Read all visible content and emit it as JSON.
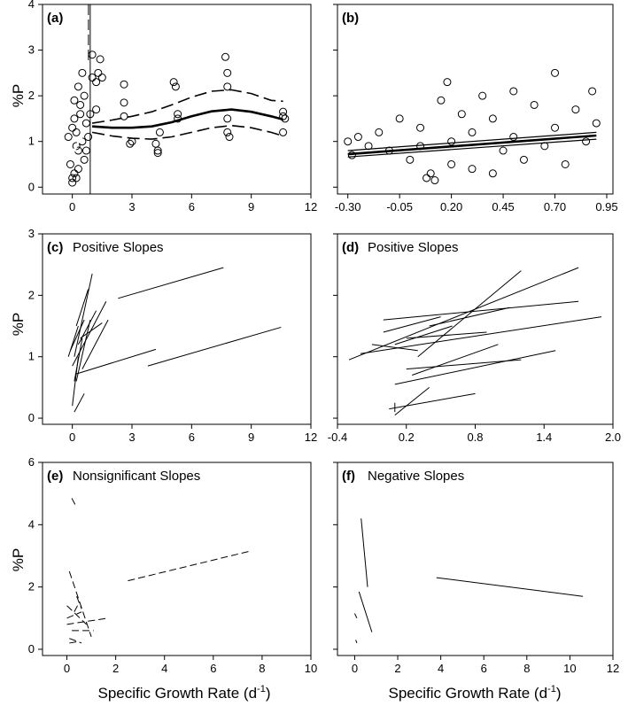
{
  "figure": {
    "x_title": "Specific Growth Rate (d",
    "x_title_sup": "-1",
    "x_title_close": ")",
    "y_title": "%P"
  },
  "chart_data": [
    {
      "panel": "a",
      "label": "(a)",
      "title": "",
      "type": "scatter",
      "xlim": [
        -1.5,
        12
      ],
      "ylim": [
        -0.15,
        4
      ],
      "xticks": [
        "0",
        "3",
        "6",
        "9",
        "12"
      ],
      "xtick_values": [
        0,
        3,
        6,
        9,
        12
      ],
      "yticks": [
        "0",
        "1",
        "2",
        "3",
        "4"
      ],
      "ytick_values": [
        0,
        1,
        2,
        3,
        4
      ],
      "ylabel": "%P",
      "points_note": "dense cluster of points at growth rate 0-1",
      "points": [
        [
          2.6,
          2.25
        ],
        [
          2.6,
          1.85
        ],
        [
          2.6,
          1.55
        ],
        [
          2.9,
          0.95
        ],
        [
          3.0,
          1.0
        ],
        [
          4.2,
          0.95
        ],
        [
          4.3,
          0.75
        ],
        [
          4.3,
          0.8
        ],
        [
          4.4,
          1.2
        ],
        [
          5.1,
          2.3
        ],
        [
          5.2,
          2.2
        ],
        [
          5.3,
          1.6
        ],
        [
          5.3,
          1.5
        ],
        [
          7.7,
          2.85
        ],
        [
          7.8,
          2.5
        ],
        [
          7.8,
          2.2
        ],
        [
          7.8,
          1.5
        ],
        [
          7.8,
          1.2
        ],
        [
          7.9,
          1.1
        ],
        [
          10.6,
          1.65
        ],
        [
          10.6,
          1.55
        ],
        [
          10.7,
          1.5
        ],
        [
          10.6,
          1.2
        ],
        [
          1.0,
          2.9
        ],
        [
          1.4,
          2.8
        ],
        [
          1.3,
          2.5
        ],
        [
          1.2,
          2.3
        ],
        [
          1.0,
          2.4
        ],
        [
          1.5,
          2.4
        ],
        [
          1.2,
          1.7
        ],
        [
          0.9,
          1.6
        ],
        [
          0.0,
          0.2
        ],
        [
          0.1,
          0.3
        ],
        [
          0.2,
          0.2
        ],
        [
          0.0,
          0.1
        ],
        [
          -0.1,
          0.5
        ],
        [
          0.3,
          0.8
        ],
        [
          0.5,
          1.0
        ],
        [
          0.2,
          1.2
        ],
        [
          0.1,
          1.5
        ],
        [
          0.4,
          1.8
        ],
        [
          0.6,
          2.0
        ],
        [
          0.7,
          1.4
        ],
        [
          0.8,
          1.1
        ],
        [
          0.3,
          2.2
        ],
        [
          0.5,
          2.5
        ],
        [
          0.2,
          0.9
        ],
        [
          -0.2,
          1.1
        ],
        [
          0.0,
          1.3
        ],
        [
          0.6,
          0.6
        ],
        [
          0.3,
          0.4
        ],
        [
          0.1,
          1.9
        ],
        [
          0.4,
          1.6
        ],
        [
          0.7,
          0.8
        ]
      ],
      "series": [
        {
          "name": "",
          "style": "solid-thick",
          "x": [
            1.0,
            2,
            3,
            4,
            5,
            6,
            7,
            8,
            9,
            10,
            10.6
          ],
          "y": [
            1.33,
            1.3,
            1.3,
            1.33,
            1.42,
            1.55,
            1.66,
            1.7,
            1.65,
            1.55,
            1.48
          ]
        },
        {
          "name": "",
          "style": "dashed-upper",
          "x": [
            1.0,
            2,
            3,
            4,
            5,
            6,
            7,
            8,
            9,
            10,
            10.6
          ],
          "y": [
            1.4,
            1.47,
            1.55,
            1.65,
            1.8,
            1.97,
            2.1,
            2.13,
            2.05,
            1.9,
            1.88
          ]
        },
        {
          "name": "",
          "style": "dashed-lower",
          "x": [
            1.0,
            2,
            3,
            4,
            5,
            6,
            7,
            8,
            9,
            10,
            10.6
          ],
          "y": [
            1.2,
            1.12,
            1.07,
            1.05,
            1.1,
            1.2,
            1.3,
            1.35,
            1.3,
            1.2,
            1.12
          ]
        },
        {
          "name": "",
          "style": "white",
          "x": [
            0.0,
            0.2,
            0.4,
            0.6,
            0.8
          ],
          "y": [
            0.72,
            0.9,
            1.05,
            1.17,
            1.25
          ]
        }
      ],
      "vline_x": 0.9
    },
    {
      "panel": "b",
      "label": "(b)",
      "title": "",
      "type": "scatter",
      "xlim": [
        -0.35,
        0.98
      ],
      "ylim": [
        -0.15,
        4
      ],
      "xticks": [
        "-0.30",
        "-0.05",
        "0.20",
        "0.45",
        "0.70",
        "0.95"
      ],
      "xtick_values": [
        -0.3,
        -0.05,
        0.2,
        0.45,
        0.7,
        0.95
      ],
      "yticks": [],
      "ytick_values": [
        0,
        1,
        2,
        3,
        4
      ],
      "points_note": "dense cloud of points between 0 and 0.9",
      "points": [
        [
          -0.3,
          1.0
        ],
        [
          -0.28,
          0.7
        ],
        [
          -0.25,
          1.1
        ],
        [
          -0.2,
          0.9
        ],
        [
          -0.15,
          1.2
        ],
        [
          -0.1,
          0.8
        ],
        [
          -0.05,
          1.5
        ],
        [
          0.0,
          0.6
        ],
        [
          0.05,
          1.3
        ],
        [
          0.05,
          0.9
        ],
        [
          0.08,
          0.2
        ],
        [
          0.1,
          0.3
        ],
        [
          0.12,
          0.15
        ],
        [
          0.15,
          1.9
        ],
        [
          0.18,
          2.3
        ],
        [
          0.2,
          0.5
        ],
        [
          0.2,
          1.0
        ],
        [
          0.25,
          1.6
        ],
        [
          0.3,
          0.4
        ],
        [
          0.3,
          1.2
        ],
        [
          0.35,
          2.0
        ],
        [
          0.4,
          0.3
        ],
        [
          0.4,
          1.5
        ],
        [
          0.45,
          0.8
        ],
        [
          0.5,
          2.1
        ],
        [
          0.5,
          1.1
        ],
        [
          0.55,
          0.6
        ],
        [
          0.6,
          1.8
        ],
        [
          0.65,
          0.9
        ],
        [
          0.7,
          2.5
        ],
        [
          0.7,
          1.3
        ],
        [
          0.75,
          0.5
        ],
        [
          0.8,
          1.7
        ],
        [
          0.85,
          1.0
        ],
        [
          0.88,
          2.1
        ],
        [
          0.9,
          1.4
        ]
      ],
      "series": [
        {
          "name": "",
          "style": "solid-thick",
          "x": [
            -0.3,
            0.9
          ],
          "y": [
            0.72,
            1.13
          ]
        },
        {
          "name": "",
          "style": "thin-upper",
          "x": [
            -0.3,
            0.9
          ],
          "y": [
            0.8,
            1.2
          ]
        },
        {
          "name": "",
          "style": "thin-lower",
          "x": [
            -0.3,
            0.9
          ],
          "y": [
            0.66,
            1.05
          ]
        }
      ]
    },
    {
      "panel": "c",
      "label": "(c)",
      "title": "Positive Slopes",
      "type": "line",
      "xlim": [
        -1.5,
        12
      ],
      "ylim": [
        -0.1,
        3
      ],
      "xticks": [
        "0",
        "3",
        "6",
        "9",
        "12"
      ],
      "xtick_values": [
        0,
        3,
        6,
        9,
        12
      ],
      "yticks": [
        "0",
        "1",
        "2",
        "3"
      ],
      "ytick_values": [
        0,
        1,
        2,
        3
      ],
      "ylabel": "%P",
      "segments": [
        [
          2.3,
          1.95,
          7.6,
          2.45
        ],
        [
          3.8,
          0.85,
          10.5,
          1.48
        ],
        [
          0.2,
          0.72,
          4.2,
          1.12
        ],
        [
          0.1,
          1.0,
          1.0,
          2.35
        ],
        [
          0.0,
          0.85,
          1.7,
          1.9
        ],
        [
          0.2,
          0.6,
          0.9,
          1.6
        ],
        [
          -0.1,
          1.1,
          0.6,
          1.6
        ],
        [
          0.3,
          1.2,
          1.2,
          1.75
        ],
        [
          0.1,
          0.1,
          0.6,
          0.4
        ],
        [
          0.0,
          0.2,
          0.3,
          1.0
        ],
        [
          0.4,
          1.3,
          1.5,
          1.55
        ],
        [
          -0.2,
          1.0,
          0.3,
          1.5
        ],
        [
          0.5,
          0.8,
          1.8,
          1.6
        ],
        [
          0.2,
          1.5,
          0.8,
          2.1
        ],
        [
          0.1,
          0.6,
          0.5,
          1.3
        ]
      ]
    },
    {
      "panel": "d",
      "label": "(d)",
      "title": "Positive Slopes",
      "type": "line",
      "xlim": [
        -0.4,
        2.0
      ],
      "ylim": [
        -0.1,
        3
      ],
      "xticks": [
        "-0.4",
        "0.2",
        "0.8",
        "1.4",
        "2.0"
      ],
      "xtick_values": [
        -0.4,
        0.2,
        0.8,
        1.4,
        2.0
      ],
      "yticks": [],
      "ytick_values": [
        0,
        1,
        2,
        3
      ],
      "segments": [
        [
          -0.3,
          0.95,
          1.7,
          2.45
        ],
        [
          -0.2,
          1.05,
          1.9,
          1.65
        ],
        [
          0.0,
          1.6,
          1.7,
          1.9
        ],
        [
          0.1,
          0.05,
          0.4,
          0.5
        ],
        [
          0.1,
          0.55,
          1.5,
          1.1
        ],
        [
          0.05,
          0.15,
          0.8,
          0.4
        ],
        [
          0.2,
          0.8,
          1.2,
          0.95
        ],
        [
          0.3,
          1.0,
          1.2,
          2.4
        ],
        [
          0.2,
          1.3,
          0.9,
          1.4
        ],
        [
          0.0,
          1.4,
          0.5,
          1.65
        ],
        [
          0.1,
          1.2,
          0.6,
          1.5
        ],
        [
          0.25,
          0.7,
          1.0,
          1.2
        ],
        [
          -0.1,
          1.2,
          0.3,
          1.1
        ],
        [
          0.4,
          1.5,
          1.1,
          1.8
        ],
        [
          0.1,
          0.25,
          0.1,
          0.1
        ]
      ]
    },
    {
      "panel": "e",
      "label": "(e)",
      "title": "Nonsignificant Slopes",
      "type": "line",
      "xlim": [
        -1.0,
        10
      ],
      "ylim": [
        -0.2,
        6
      ],
      "xticks": [
        "0",
        "2",
        "4",
        "6",
        "8",
        "10"
      ],
      "xtick_values": [
        0,
        2,
        4,
        6,
        8,
        10
      ],
      "yticks": [
        "0",
        "2",
        "4",
        "6"
      ],
      "ytick_values": [
        0,
        2,
        4,
        6
      ],
      "ylabel": "%P",
      "segments": [
        [
          2.5,
          2.2,
          7.5,
          3.15
        ],
        [
          0.2,
          4.85,
          0.4,
          4.55
        ],
        [
          0.1,
          2.5,
          1.0,
          0.4
        ],
        [
          0.0,
          0.8,
          1.7,
          1.0
        ],
        [
          0.0,
          1.4,
          0.8,
          0.8
        ],
        [
          0.2,
          0.6,
          1.1,
          0.6
        ],
        [
          0.1,
          0.2,
          0.5,
          0.25
        ],
        [
          0.3,
          1.2,
          0.5,
          1.5
        ],
        [
          0.0,
          1.0,
          0.6,
          1.2
        ],
        [
          0.4,
          1.7,
          0.6,
          1.3
        ],
        [
          0.1,
          0.35,
          0.6,
          0.2
        ]
      ]
    },
    {
      "panel": "f",
      "label": "(f)",
      "title": "Negative Slopes",
      "type": "line",
      "xlim": [
        -0.8,
        12
      ],
      "ylim": [
        -0.2,
        6
      ],
      "xticks": [
        "0",
        "2",
        "4",
        "6",
        "8",
        "10",
        "12"
      ],
      "xtick_values": [
        0,
        2,
        4,
        6,
        8,
        10,
        12
      ],
      "yticks": [],
      "ytick_values": [
        0,
        2,
        4,
        6
      ],
      "segments": [
        [
          3.8,
          2.3,
          10.6,
          1.7
        ],
        [
          0.3,
          4.2,
          0.6,
          2.0
        ],
        [
          0.2,
          1.85,
          0.8,
          0.55
        ],
        [
          0.0,
          1.15,
          0.1,
          1.0
        ],
        [
          0.05,
          0.3,
          0.1,
          0.2
        ]
      ]
    }
  ]
}
